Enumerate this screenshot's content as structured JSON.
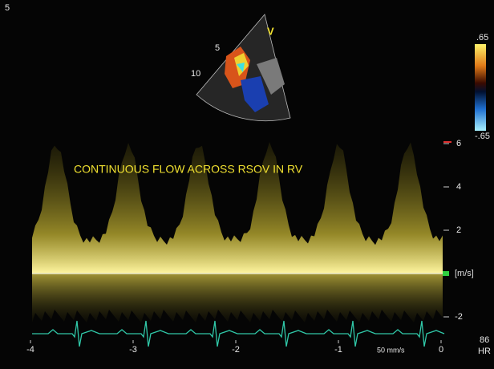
{
  "corner_label": "5",
  "sector": {
    "marker": "V",
    "depth_labels": [
      "5",
      "10"
    ]
  },
  "color_scale": {
    "top": ".65",
    "bottom": "-.65"
  },
  "annotation": "CONTINUOUS FLOW ACROSS RSOV IN RV",
  "velocity_axis": {
    "unit": "[m/s]",
    "ticks": [
      6,
      4,
      2,
      -2
    ]
  },
  "time_axis": {
    "ticks": [
      -4,
      -3,
      -2,
      -1,
      0
    ],
    "sweep": "50 mm/s"
  },
  "heart_rate": {
    "value": "86",
    "label": "HR"
  }
}
